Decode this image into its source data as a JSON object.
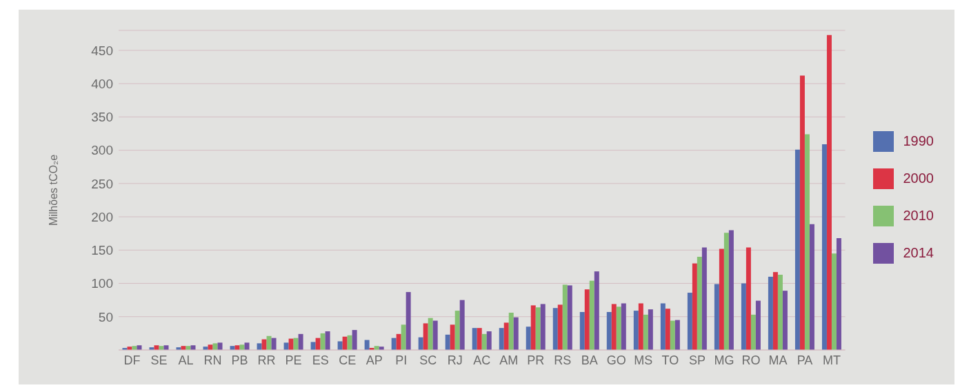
{
  "chart_data": {
    "type": "bar",
    "ylabel": "Milhões tCO₂e",
    "categories": [
      "DF",
      "SE",
      "AL",
      "RN",
      "PB",
      "RR",
      "PE",
      "ES",
      "CE",
      "AP",
      "PI",
      "SC",
      "RJ",
      "AC",
      "AM",
      "PR",
      "RS",
      "BA",
      "GO",
      "MS",
      "TO",
      "SP",
      "MG",
      "RO",
      "MA",
      "PA",
      "MT"
    ],
    "series": [
      {
        "name": "1990",
        "color": "#5470b0",
        "values": [
          3,
          4,
          4,
          5,
          6,
          10,
          11,
          12,
          13,
          15,
          18,
          19,
          23,
          33,
          33,
          35,
          63,
          57,
          57,
          59,
          70,
          86,
          99,
          100,
          110,
          301,
          309
        ]
      },
      {
        "name": "2000",
        "color": "#dc3545",
        "values": [
          5,
          7,
          6,
          8,
          7,
          16,
          17,
          18,
          20,
          3,
          24,
          40,
          38,
          33,
          41,
          67,
          68,
          91,
          69,
          70,
          62,
          130,
          152,
          154,
          117,
          412,
          473
        ]
      },
      {
        "name": "2010",
        "color": "#86c173",
        "values": [
          6,
          6,
          6,
          10,
          8,
          21,
          18,
          25,
          22,
          6,
          38,
          48,
          59,
          24,
          56,
          64,
          98,
          104,
          65,
          53,
          44,
          140,
          176,
          53,
          113,
          324,
          145
        ]
      },
      {
        "name": "2014",
        "color": "#7251a0",
        "values": [
          7,
          7,
          7,
          11,
          11,
          18,
          24,
          28,
          30,
          5,
          87,
          44,
          75,
          28,
          49,
          69,
          97,
          118,
          70,
          61,
          45,
          154,
          180,
          74,
          89,
          189,
          168
        ]
      }
    ],
    "ylim": [
      0,
      480
    ],
    "yticks": [
      {
        "value": 0,
        "label": null
      },
      50,
      100,
      150,
      200,
      250,
      300,
      350,
      400,
      450
    ],
    "grid": "y",
    "legend": "right"
  }
}
